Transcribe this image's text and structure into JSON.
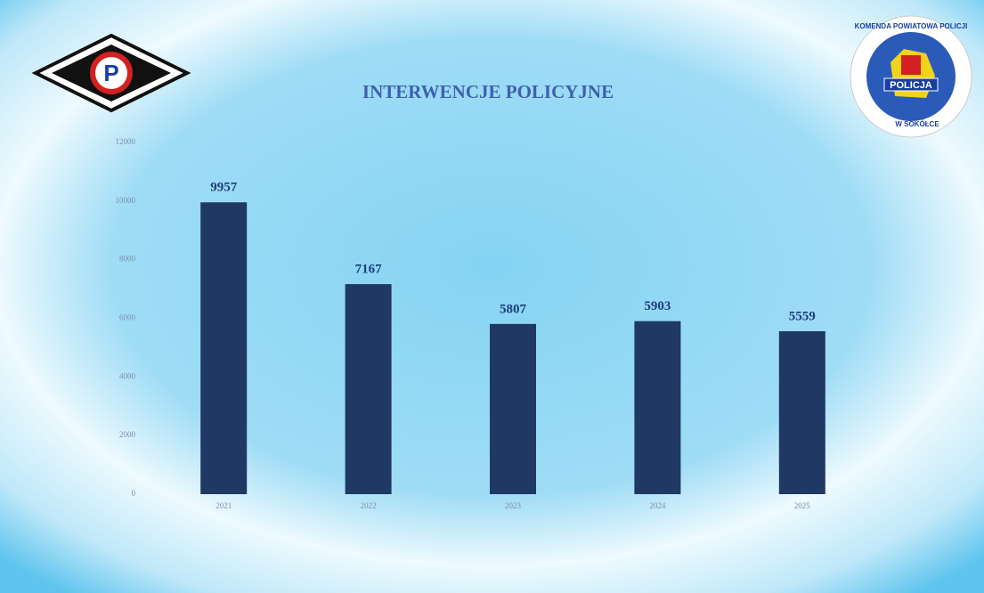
{
  "logos": {
    "left": "P",
    "right": [
      "KOMENDA POWIATOWA POLICJI",
      "POLICJA",
      "W SOKÓŁCE"
    ]
  },
  "chart_data": {
    "type": "bar",
    "title": "INTERWENCJE POLICYJNE",
    "categories": [
      "2021",
      "2022",
      "2023",
      "2024",
      "2025"
    ],
    "values": [
      9957,
      7167,
      5807,
      5903,
      5559
    ],
    "color": "#1f3864",
    "ylim": [
      0,
      12000
    ],
    "yticks": [
      0,
      2000,
      4000,
      6000,
      8000,
      10000,
      12000
    ],
    "grid": false
  }
}
